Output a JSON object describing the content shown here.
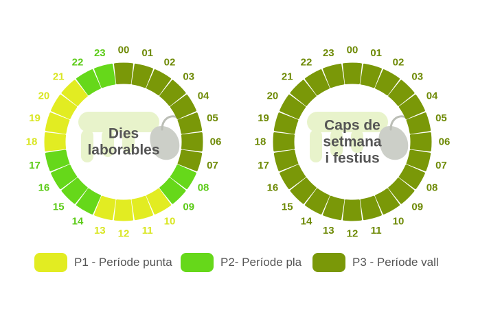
{
  "colors": {
    "P1": "#e2ec22",
    "P2": "#66d81a",
    "P3": "#7a9808",
    "hourP1": "#d9e622",
    "hourP2": "#5ccb18",
    "hourP3": "#6e8a06",
    "centerText": "#555555",
    "logo": "#e4f2c2"
  },
  "clocks": [
    {
      "title_lines": [
        "Dies",
        "laborables"
      ],
      "hours": [
        "00",
        "01",
        "02",
        "03",
        "04",
        "05",
        "06",
        "07",
        "08",
        "09",
        "10",
        "11",
        "12",
        "13",
        "14",
        "15",
        "16",
        "17",
        "18",
        "19",
        "20",
        "21",
        "22",
        "23"
      ],
      "periods": [
        "P3",
        "P3",
        "P3",
        "P3",
        "P3",
        "P3",
        "P3",
        "P3",
        "P2",
        "P2",
        "P1",
        "P1",
        "P1",
        "P1",
        "P2",
        "P2",
        "P2",
        "P2",
        "P1",
        "P1",
        "P1",
        "P1",
        "P2",
        "P2"
      ]
    },
    {
      "title_lines": [
        "Caps de",
        "setmana",
        "i festius"
      ],
      "hours": [
        "00",
        "01",
        "02",
        "03",
        "04",
        "05",
        "06",
        "07",
        "08",
        "09",
        "10",
        "11",
        "12",
        "13",
        "14",
        "15",
        "16",
        "17",
        "18",
        "19",
        "20",
        "21",
        "22",
        "23"
      ],
      "periods": [
        "P3",
        "P3",
        "P3",
        "P3",
        "P3",
        "P3",
        "P3",
        "P3",
        "P3",
        "P3",
        "P3",
        "P3",
        "P3",
        "P3",
        "P3",
        "P3",
        "P3",
        "P3",
        "P3",
        "P3",
        "P3",
        "P3",
        "P3",
        "P3"
      ]
    }
  ],
  "legend": [
    {
      "key": "P1",
      "label": "P1 - Període punta"
    },
    {
      "key": "P2",
      "label": "P2- Període pla"
    },
    {
      "key": "P3",
      "label": "P3 - Període vall"
    }
  ]
}
